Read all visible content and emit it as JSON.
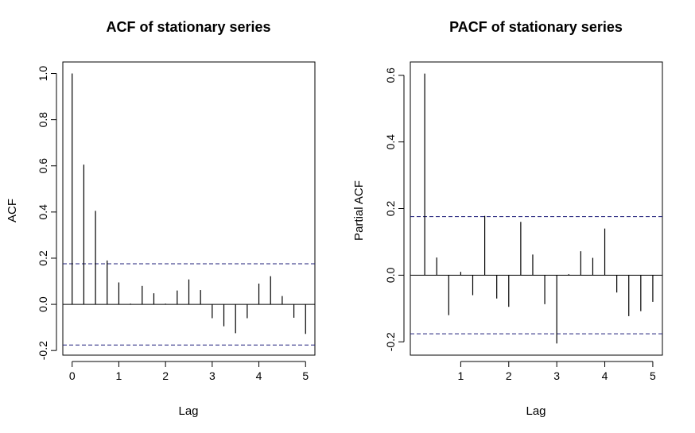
{
  "chart_data": [
    {
      "type": "bar",
      "title": "ACF of stationary series",
      "xlabel": "Lag",
      "ylabel": "ACF",
      "xlim": [
        -0.2,
        5.2
      ],
      "ylim": [
        -0.22,
        1.05
      ],
      "xticks": [
        0,
        1,
        2,
        3,
        4,
        5
      ],
      "xtick_labels": [
        "0",
        "1",
        "2",
        "3",
        "4",
        "5"
      ],
      "yticks": [
        -0.2,
        0.0,
        0.2,
        0.4,
        0.6,
        0.8,
        1.0
      ],
      "ytick_labels": [
        "-0.2",
        "0.0",
        "0.2",
        "0.4",
        "0.6",
        "0.8",
        "1.0"
      ],
      "confidence_limit": 0.176,
      "x": [
        0,
        0.25,
        0.5,
        0.75,
        1.0,
        1.25,
        1.5,
        1.75,
        2.0,
        2.25,
        2.5,
        2.75,
        3.0,
        3.25,
        3.5,
        3.75,
        4.0,
        4.25,
        4.5,
        4.75,
        5.0
      ],
      "values": [
        1.0,
        0.605,
        0.405,
        0.19,
        0.095,
        0.003,
        0.08,
        0.048,
        0.003,
        0.06,
        0.108,
        0.062,
        -0.06,
        -0.095,
        -0.125,
        -0.06,
        0.09,
        0.122,
        0.036,
        -0.058,
        -0.128
      ]
    },
    {
      "type": "bar",
      "title": "PACF of stationary series",
      "xlabel": "Lag",
      "ylabel": "Partial ACF",
      "xlim": [
        -0.05,
        5.2
      ],
      "ylim": [
        -0.24,
        0.64
      ],
      "xticks": [
        1,
        2,
        3,
        4,
        5
      ],
      "xtick_labels": [
        "1",
        "2",
        "3",
        "4",
        "5"
      ],
      "yticks": [
        -0.2,
        0.0,
        0.2,
        0.4,
        0.6
      ],
      "ytick_labels": [
        "-0.2",
        "0.0",
        "0.2",
        "0.4",
        "0.6"
      ],
      "confidence_limit": 0.176,
      "x": [
        0.25,
        0.5,
        0.75,
        1.0,
        1.25,
        1.5,
        1.75,
        2.0,
        2.25,
        2.5,
        2.75,
        3.0,
        3.25,
        3.5,
        3.75,
        4.0,
        4.25,
        4.5,
        4.75,
        5.0
      ],
      "values": [
        0.605,
        0.053,
        -0.12,
        0.01,
        -0.06,
        0.178,
        -0.07,
        -0.095,
        0.16,
        0.062,
        -0.087,
        -0.205,
        0.003,
        0.072,
        0.052,
        0.14,
        -0.052,
        -0.123,
        -0.108,
        -0.08
      ]
    }
  ],
  "colors": {
    "bars": "#000000",
    "frame": "#000000",
    "confidence": "#1f1f7a"
  }
}
